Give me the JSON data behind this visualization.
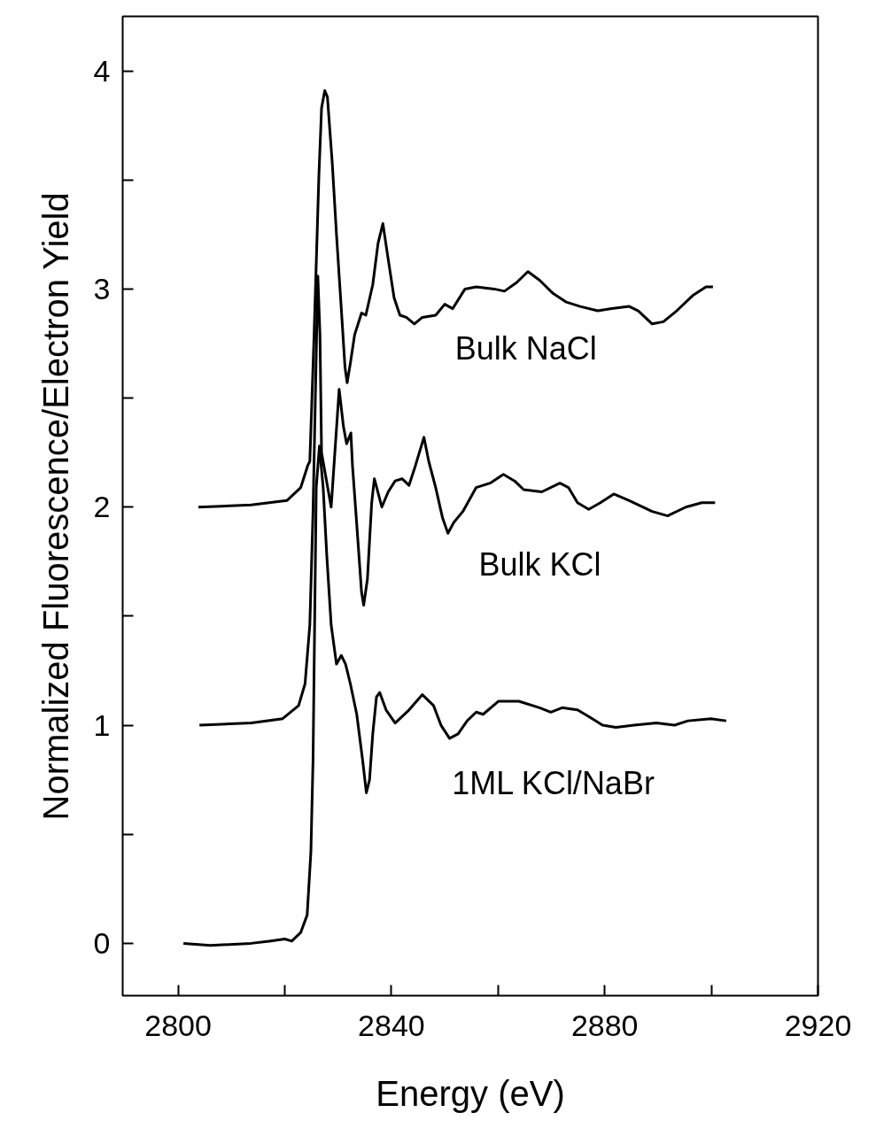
{
  "chart_data": {
    "type": "line",
    "xlabel": "Energy (eV)",
    "ylabel": "Normalized Fluorescence/Electron Yield",
    "xlim": [
      2789.6,
      2920
    ],
    "ylim": [
      -0.24,
      4.25
    ],
    "xticks": [
      2800,
      {
        "value": 2820,
        "label": null
      },
      2840,
      {
        "value": 2860,
        "label": null
      },
      2880,
      {
        "value": 2900,
        "label": null
      },
      2920
    ],
    "yticks": [
      0,
      {
        "value": 0.5,
        "label": null
      },
      1,
      {
        "value": 1.5,
        "label": null
      },
      2,
      {
        "value": 2.5,
        "label": null
      },
      3,
      {
        "value": 3.5,
        "label": null
      },
      4
    ],
    "grid": false,
    "line_style": "solid",
    "marker": "none",
    "series": [
      {
        "name": "Bulk NaCl",
        "color": "#000000",
        "x": [
          2803.8,
          2813.7,
          2820.4,
          2823.0,
          2824.3,
          2824.7,
          2825.5,
          2826.4,
          2826.9,
          2827.5,
          2828.0,
          2828.9,
          2829.7,
          2830.6,
          2831.3,
          2831.7,
          2832.3,
          2833.1,
          2834.4,
          2835.2,
          2836.5,
          2837.5,
          2838.4,
          2839.5,
          2840.5,
          2841.6,
          2842.8,
          2844.3,
          2845.8,
          2848.3,
          2850.0,
          2851.5,
          2853.8,
          2855.9,
          2859.3,
          2861.2,
          2863.5,
          2865.6,
          2867.8,
          2870.3,
          2872.8,
          2875.4,
          2878.7,
          2881.3,
          2884.6,
          2886.3,
          2888.9,
          2891.0,
          2893.5,
          2896.5,
          2899.0,
          2900.3
        ],
        "values": [
          2.0,
          2.01,
          2.03,
          2.09,
          2.19,
          2.21,
          2.79,
          3.52,
          3.83,
          3.91,
          3.88,
          3.58,
          3.25,
          2.91,
          2.64,
          2.57,
          2.66,
          2.79,
          2.89,
          2.88,
          3.02,
          3.21,
          3.3,
          3.12,
          2.96,
          2.88,
          2.87,
          2.84,
          2.87,
          2.88,
          2.93,
          2.91,
          3.0,
          3.01,
          3.0,
          2.99,
          3.03,
          3.08,
          3.04,
          2.98,
          2.94,
          2.92,
          2.9,
          2.91,
          2.92,
          2.9,
          2.84,
          2.85,
          2.9,
          2.97,
          3.01,
          3.01
        ]
      },
      {
        "name": "Bulk KCl",
        "color": "#000000",
        "x": [
          2804.0,
          2813.7,
          2819.6,
          2822.6,
          2823.8,
          2824.7,
          2825.3,
          2826.2,
          2826.6,
          2826.9,
          2828.7,
          2830.2,
          2831.0,
          2831.6,
          2832.4,
          2832.7,
          2833.5,
          2834.4,
          2834.8,
          2835.5,
          2836.3,
          2836.8,
          2838.2,
          2839.4,
          2840.7,
          2842.0,
          2843.3,
          2844.5,
          2846.1,
          2847.0,
          2848.3,
          2849.6,
          2850.6,
          2851.7,
          2853.4,
          2855.9,
          2858.5,
          2861.0,
          2863.1,
          2864.8,
          2868.2,
          2871.6,
          2873.2,
          2874.9,
          2877.0,
          2879.2,
          2881.7,
          2884.6,
          2888.9,
          2891.8,
          2895.2,
          2898.2,
          2900.7
        ],
        "values": [
          1.0,
          1.01,
          1.03,
          1.09,
          1.19,
          1.46,
          1.98,
          3.06,
          2.79,
          2.25,
          2.0,
          2.54,
          2.37,
          2.29,
          2.34,
          2.19,
          1.92,
          1.61,
          1.55,
          1.67,
          2.02,
          2.13,
          2.0,
          2.07,
          2.12,
          2.13,
          2.1,
          2.19,
          2.32,
          2.21,
          2.09,
          1.95,
          1.88,
          1.93,
          1.98,
          2.09,
          2.11,
          2.15,
          2.12,
          2.08,
          2.07,
          2.11,
          2.09,
          2.02,
          1.99,
          2.02,
          2.06,
          2.03,
          1.98,
          1.96,
          2.0,
          2.02,
          2.02
        ]
      },
      {
        "name": "1ML KCl/NaBr",
        "color": "#000000",
        "x": [
          2801.0,
          2806.1,
          2813.7,
          2817.1,
          2820.0,
          2821.3,
          2823.0,
          2824.2,
          2824.9,
          2825.3,
          2825.6,
          2825.9,
          2826.5,
          2827.2,
          2827.9,
          2828.7,
          2829.7,
          2830.6,
          2831.4,
          2832.3,
          2833.5,
          2834.6,
          2835.3,
          2835.9,
          2836.5,
          2837.2,
          2837.8,
          2839.0,
          2840.7,
          2843.3,
          2845.8,
          2847.9,
          2849.3,
          2850.9,
          2852.5,
          2854.2,
          2855.9,
          2857.2,
          2860.1,
          2863.9,
          2867.8,
          2869.9,
          2872.0,
          2874.9,
          2877.0,
          2879.6,
          2882.1,
          2885.5,
          2889.7,
          2893.1,
          2895.6,
          2899.9,
          2902.8
        ],
        "values": [
          0.0,
          -0.01,
          0.0,
          0.01,
          0.02,
          0.01,
          0.05,
          0.13,
          0.42,
          0.84,
          1.46,
          2.09,
          2.28,
          2.09,
          1.77,
          1.46,
          1.28,
          1.32,
          1.28,
          1.19,
          1.05,
          0.84,
          0.69,
          0.75,
          0.96,
          1.13,
          1.15,
          1.07,
          1.01,
          1.07,
          1.14,
          1.09,
          1.0,
          0.94,
          0.96,
          1.02,
          1.06,
          1.05,
          1.11,
          1.11,
          1.08,
          1.06,
          1.08,
          1.07,
          1.04,
          1.0,
          0.99,
          1.0,
          1.01,
          1.0,
          1.02,
          1.03,
          1.02
        ]
      }
    ]
  }
}
